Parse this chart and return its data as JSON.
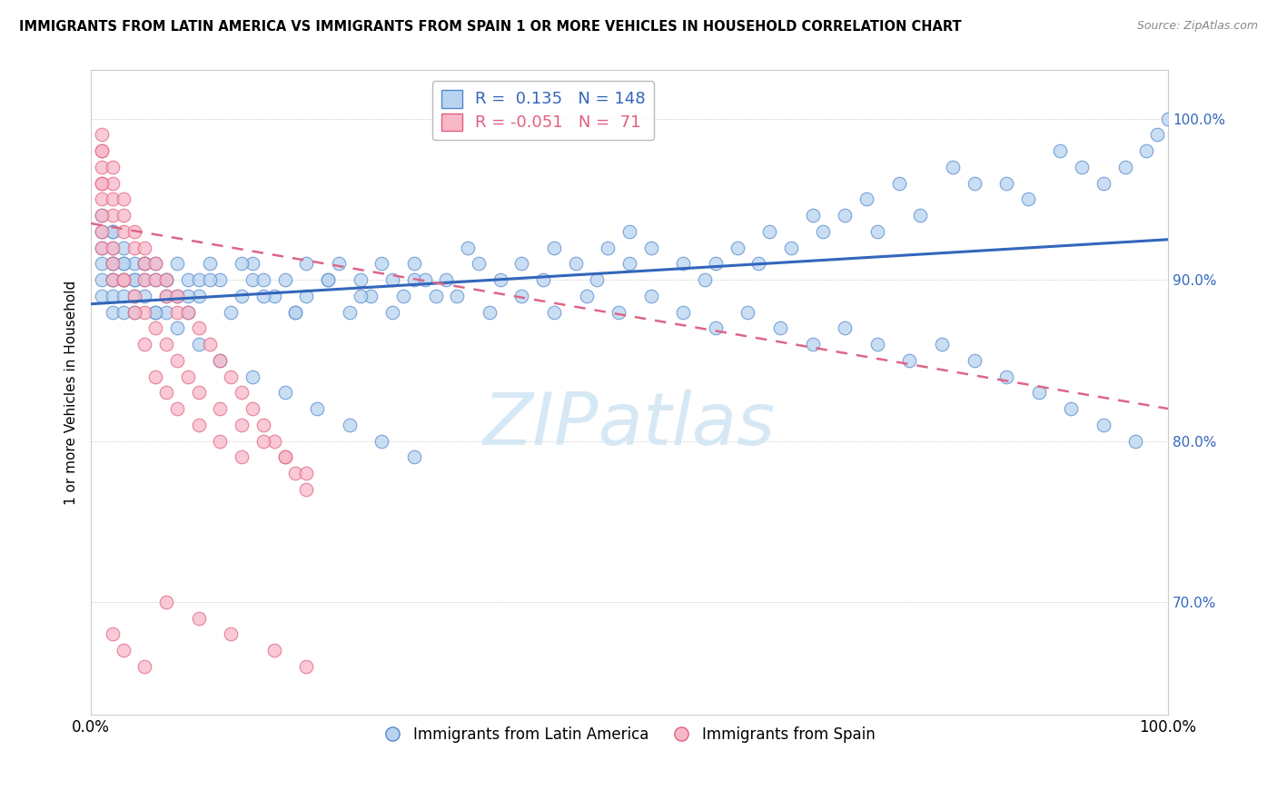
{
  "title": "IMMIGRANTS FROM LATIN AMERICA VS IMMIGRANTS FROM SPAIN 1 OR MORE VEHICLES IN HOUSEHOLD CORRELATION CHART",
  "source": "Source: ZipAtlas.com",
  "ylabel": "1 or more Vehicles in Household",
  "xlim": [
    0.0,
    100.0
  ],
  "ylim": [
    63.0,
    103.0
  ],
  "yticks": [
    70.0,
    80.0,
    90.0,
    100.0
  ],
  "ytick_labels": [
    "70.0%",
    "80.0%",
    "90.0%",
    "100.0%"
  ],
  "xtick_labels": [
    "0.0%",
    "100.0%"
  ],
  "legend_r_blue": "0.135",
  "legend_n_blue": "148",
  "legend_r_pink": "-0.051",
  "legend_n_pink": "71",
  "color_blue_fill": "#b8d4f0",
  "color_blue_edge": "#5588cc",
  "color_pink_fill": "#f8b8c8",
  "color_pink_edge": "#e06080",
  "color_blue_line": "#3366bb",
  "color_pink_line": "#dd6688",
  "watermark": "ZIPatlas",
  "blue_line_x0": 0,
  "blue_line_y0": 88.5,
  "blue_line_x1": 100,
  "blue_line_y1": 92.5,
  "pink_line_x0": 0,
  "pink_line_y0": 93.5,
  "pink_line_x1": 100,
  "pink_line_y1": 82.0,
  "blue_x": [
    1,
    1,
    1,
    1,
    1,
    1,
    2,
    2,
    2,
    2,
    2,
    2,
    2,
    2,
    3,
    3,
    3,
    3,
    3,
    3,
    4,
    4,
    4,
    4,
    5,
    5,
    5,
    6,
    6,
    6,
    7,
    7,
    7,
    8,
    8,
    9,
    9,
    10,
    10,
    11,
    12,
    13,
    14,
    15,
    15,
    16,
    17,
    18,
    19,
    20,
    20,
    22,
    23,
    24,
    25,
    26,
    27,
    28,
    29,
    30,
    30,
    32,
    33,
    35,
    36,
    38,
    40,
    42,
    43,
    45,
    47,
    48,
    50,
    50,
    52,
    55,
    57,
    58,
    60,
    62,
    63,
    65,
    67,
    68,
    70,
    72,
    73,
    75,
    77,
    80,
    82,
    85,
    87,
    90,
    92,
    94,
    96,
    98,
    99,
    100,
    5,
    7,
    9,
    11,
    14,
    16,
    19,
    22,
    25,
    28,
    31,
    34,
    37,
    40,
    43,
    46,
    49,
    52,
    55,
    58,
    61,
    64,
    67,
    70,
    73,
    76,
    79,
    82,
    85,
    88,
    91,
    94,
    97,
    2,
    3,
    4,
    6,
    8,
    10,
    12,
    15,
    18,
    21,
    24,
    27,
    30
  ],
  "blue_y": [
    92,
    93,
    91,
    90,
    89,
    94,
    91,
    90,
    92,
    91,
    93,
    90,
    89,
    88,
    91,
    90,
    89,
    92,
    88,
    90,
    90,
    91,
    89,
    88,
    91,
    89,
    90,
    88,
    90,
    91,
    90,
    89,
    88,
    91,
    89,
    90,
    88,
    89,
    90,
    91,
    90,
    88,
    89,
    91,
    90,
    90,
    89,
    90,
    88,
    91,
    89,
    90,
    91,
    88,
    90,
    89,
    91,
    90,
    89,
    91,
    90,
    89,
    90,
    92,
    91,
    90,
    91,
    90,
    92,
    91,
    90,
    92,
    93,
    91,
    92,
    91,
    90,
    91,
    92,
    91,
    93,
    92,
    94,
    93,
    94,
    95,
    93,
    96,
    94,
    97,
    96,
    96,
    95,
    98,
    97,
    96,
    97,
    98,
    99,
    100,
    91,
    90,
    89,
    90,
    91,
    89,
    88,
    90,
    89,
    88,
    90,
    89,
    88,
    89,
    88,
    89,
    88,
    89,
    88,
    87,
    88,
    87,
    86,
    87,
    86,
    85,
    86,
    85,
    84,
    83,
    82,
    81,
    80,
    93,
    91,
    90,
    88,
    87,
    86,
    85,
    84,
    83,
    82,
    81,
    80,
    79
  ],
  "pink_x": [
    1,
    1,
    1,
    1,
    1,
    2,
    2,
    2,
    2,
    3,
    3,
    3,
    4,
    4,
    5,
    5,
    5,
    6,
    6,
    7,
    7,
    8,
    8,
    9,
    10,
    11,
    12,
    13,
    14,
    15,
    16,
    17,
    18,
    19,
    20,
    1,
    1,
    2,
    2,
    3,
    4,
    5,
    6,
    7,
    8,
    9,
    10,
    12,
    14,
    16,
    18,
    20,
    1,
    1,
    1,
    2,
    3,
    4,
    5,
    6,
    7,
    8,
    10,
    12,
    14,
    2,
    3,
    5,
    7,
    10,
    13,
    17,
    20
  ],
  "pink_y": [
    99,
    98,
    97,
    96,
    95,
    97,
    96,
    95,
    94,
    95,
    94,
    93,
    93,
    92,
    92,
    91,
    90,
    91,
    90,
    90,
    89,
    89,
    88,
    88,
    87,
    86,
    85,
    84,
    83,
    82,
    81,
    80,
    79,
    78,
    77,
    93,
    92,
    91,
    90,
    90,
    89,
    88,
    87,
    86,
    85,
    84,
    83,
    82,
    81,
    80,
    79,
    78,
    98,
    96,
    94,
    92,
    90,
    88,
    86,
    84,
    83,
    82,
    81,
    80,
    79,
    68,
    67,
    66,
    70,
    69,
    68,
    67,
    66
  ]
}
